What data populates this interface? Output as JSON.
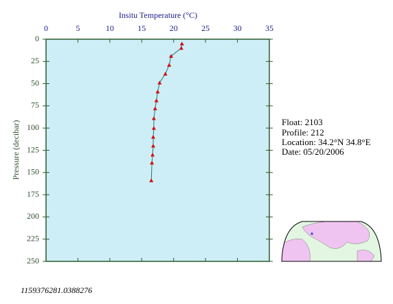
{
  "chart_data": {
    "type": "line",
    "x_label": "Insitu Temperature (°C)",
    "y_label": "Pressure (decibar)",
    "x": [
      21.3,
      21.2,
      19.6,
      19.3,
      18.7,
      17.8,
      17.5,
      17.3,
      17.1,
      16.9,
      16.9,
      16.8,
      16.8,
      16.7,
      16.6,
      16.5
    ],
    "values": [
      5,
      10,
      19,
      29,
      39,
      49,
      59,
      69,
      78,
      89,
      100,
      110,
      120,
      130,
      139,
      159
    ],
    "color": "#d01010",
    "line_color": "#2f6f6f",
    "xlim": [
      0,
      35
    ],
    "xticks": [
      0,
      5,
      10,
      15,
      20,
      25,
      30,
      35
    ],
    "ylim": [
      0,
      250
    ],
    "yticks": [
      0,
      25,
      50,
      75,
      100,
      125,
      150,
      175,
      200,
      225,
      250
    ],
    "y_inverted": true
  },
  "info": {
    "float": "Float:  2103",
    "profile": "Profile:  212",
    "location": "Location:  34.2°N  34.8°E",
    "date": "Date:  05/20/2006"
  },
  "footer": "1159376281.0388276"
}
